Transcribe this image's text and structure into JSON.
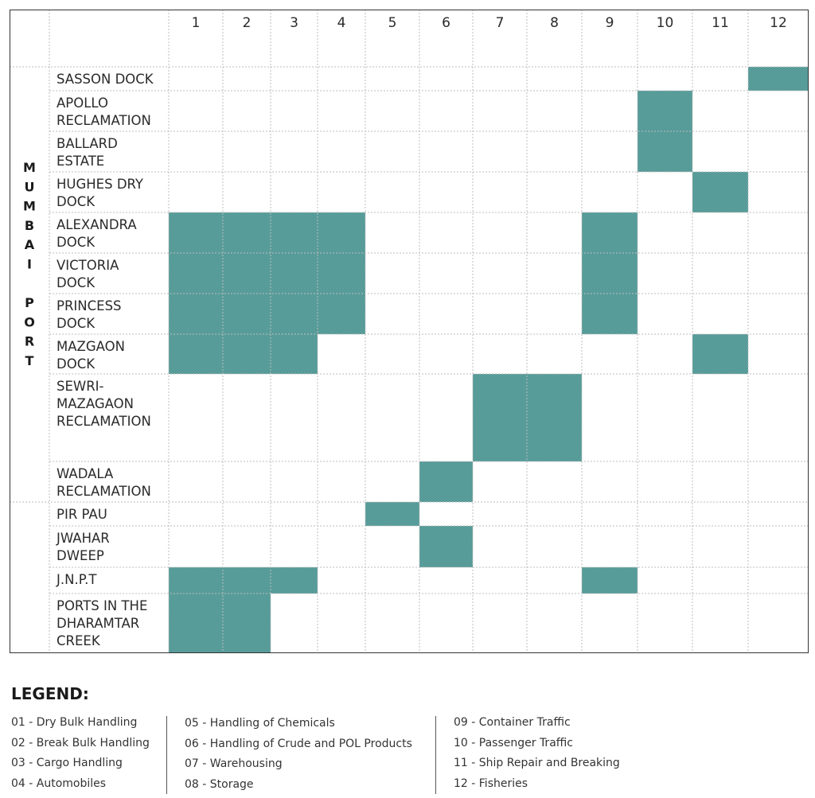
{
  "colors": {
    "fill": "#579c99",
    "grid": "#bdbdbd",
    "border": "#333333"
  },
  "columns": [
    "1",
    "2",
    "3",
    "4",
    "5",
    "6",
    "7",
    "8",
    "9",
    "10",
    "11",
    "12"
  ],
  "groups": [
    {
      "label_letters": [
        "M",
        "U",
        "M",
        "B",
        "A",
        "I",
        "",
        "P",
        "O",
        "R",
        "T"
      ]
    },
    {
      "label_letters": []
    }
  ],
  "rows": [
    {
      "label": [
        "SASSON DOCK"
      ],
      "filled": [
        12
      ]
    },
    {
      "label": [
        "APOLLO",
        "RECLAMATION"
      ],
      "filled": [
        10
      ]
    },
    {
      "label": [
        "BALLARD",
        "ESTATE"
      ],
      "filled": [
        10
      ]
    },
    {
      "label": [
        "HUGHES DRY",
        "DOCK"
      ],
      "filled": [
        11
      ]
    },
    {
      "label": [
        "ALEXANDRA",
        "DOCK"
      ],
      "filled": [
        1,
        2,
        3,
        4,
        9
      ]
    },
    {
      "label": [
        "VICTORIA",
        "DOCK"
      ],
      "filled": [
        1,
        2,
        3,
        4,
        9
      ]
    },
    {
      "label": [
        "PRINCESS",
        "DOCK"
      ],
      "filled": [
        1,
        2,
        3,
        4,
        9
      ]
    },
    {
      "label": [
        "MAZGAON",
        "DOCK"
      ],
      "filled": [
        1,
        2,
        3,
        11
      ]
    },
    {
      "label": [
        "SEWRI-",
        "MAZAGAON",
        "RECLAMATION"
      ],
      "filled": [
        7,
        8
      ]
    },
    {
      "label": [
        "WADALA",
        "RECLAMATION"
      ],
      "filled": [
        6
      ]
    },
    {
      "label": [
        "PIR PAU"
      ],
      "filled": [
        5
      ]
    },
    {
      "label": [
        "JWAHAR",
        "DWEEP"
      ],
      "filled": [
        6
      ]
    },
    {
      "label": [
        "J.N.P.T"
      ],
      "filled": [
        1,
        2,
        3,
        9
      ]
    },
    {
      "label": [
        "PORTS IN THE",
        "DHARAMTAR",
        "CREEK"
      ],
      "filled": [
        1,
        2
      ]
    }
  ],
  "legend": {
    "title": "LEGEND:",
    "col1": [
      "01 - Dry Bulk Handling",
      "02 - Break Bulk Handling",
      "03 - Cargo Handling",
      "04 - Automobiles"
    ],
    "col2": [
      "05 - Handling of Chemicals",
      "06 - Handling of Crude and POL Products",
      "07 - Warehousing",
      "08 - Storage"
    ],
    "col3": [
      "09 - Container Traffic",
      "10 - Passenger Traffic",
      "11 - Ship Repair and Breaking",
      "12 - Fisheries"
    ]
  }
}
